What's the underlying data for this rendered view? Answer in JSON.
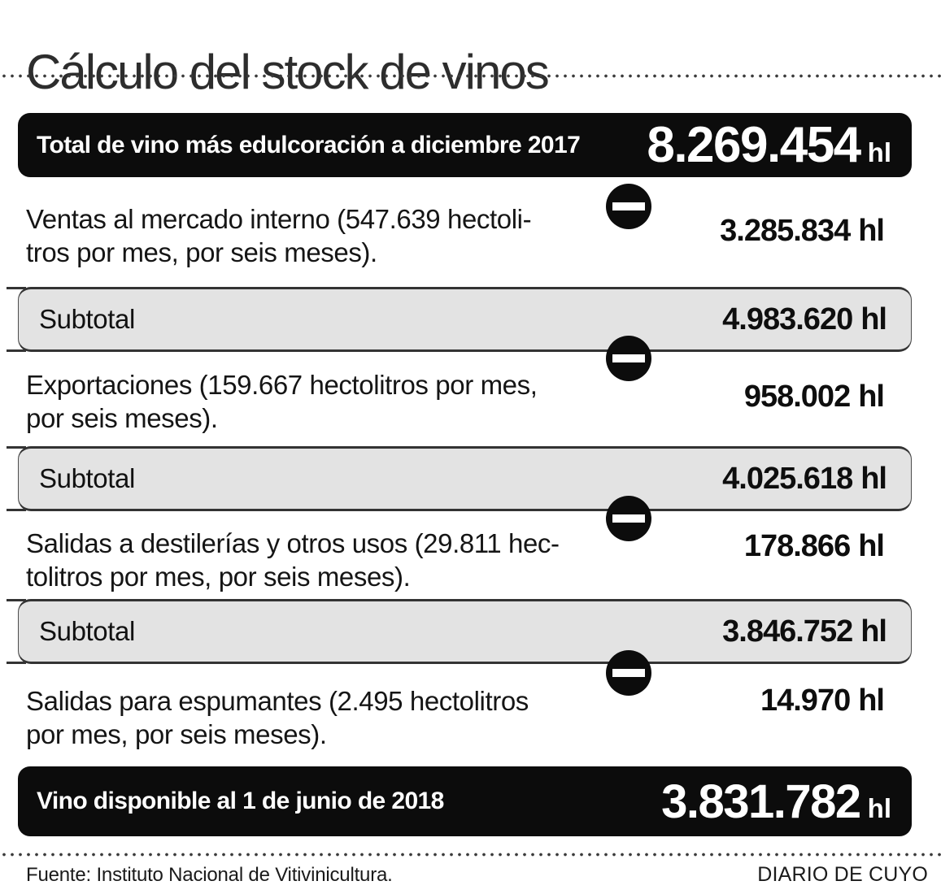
{
  "title": "Cálculo del stock de vinos",
  "header_bar": {
    "label": "Total de vino más edulcoración a diciembre 2017",
    "value": "8.269.454",
    "unit": "hl"
  },
  "deductions": [
    {
      "line1": "Ventas al mercado interno (547.639 hectoli-",
      "line2": "tros por mes, por seis meses).",
      "value": "3.285.834",
      "unit": "hl"
    },
    {
      "line1": "Exportaciones (159.667 hectolitros por mes,",
      "line2": "por seis meses).",
      "value": "958.002",
      "unit": "hl"
    },
    {
      "line1": "Salidas a destilerías y otros usos (29.811 hec-",
      "line2": "tolitros por mes, por seis meses).",
      "value": "178.866",
      "unit": "hl"
    },
    {
      "line1": "Salidas para espumantes (2.495 hectolitros",
      "line2": "por mes, por seis meses).",
      "value": "14.970",
      "unit": "hl"
    }
  ],
  "subtotals": [
    {
      "label": "Subtotal",
      "value": "4.983.620",
      "unit": "hl"
    },
    {
      "label": "Subtotal",
      "value": "4.025.618",
      "unit": "hl"
    },
    {
      "label": "Subtotal",
      "value": "3.846.752",
      "unit": "hl"
    }
  ],
  "result_bar": {
    "label": "Vino disponible al 1 de junio de 2018",
    "value": "3.831.782",
    "unit": "hl"
  },
  "footer": {
    "source": "Fuente: Instituto Nacional de Vitivinicultura.",
    "brand": "DIARIO DE CUYO"
  },
  "icons": {
    "minus": "minus-icon"
  },
  "colors": {
    "bar_black": "#0c0c0c",
    "subtotal_fill": "#e3e3e3",
    "subtotal_border": "#333333",
    "text": "#151515",
    "title": "#2d2d2d",
    "dots": "#3c3c3c"
  },
  "chart_data": {
    "type": "table",
    "title": "Cálculo del stock de vinos",
    "unit": "hl",
    "rows": [
      {
        "label": "Total de vino más edulcoración a diciembre 2017",
        "operation": "start",
        "value_hl": 8269454
      },
      {
        "label": "Ventas al mercado interno (547.639 hectolitros por mes, por seis meses).",
        "operation": "minus",
        "value_hl": 3285834
      },
      {
        "label": "Subtotal",
        "operation": "subtotal",
        "value_hl": 4983620
      },
      {
        "label": "Exportaciones (159.667 hectolitros por mes, por seis meses).",
        "operation": "minus",
        "value_hl": 958002
      },
      {
        "label": "Subtotal",
        "operation": "subtotal",
        "value_hl": 4025618
      },
      {
        "label": "Salidas a destilerías y otros usos (29.811 hectolitros por mes, por seis meses).",
        "operation": "minus",
        "value_hl": 178866
      },
      {
        "label": "Subtotal",
        "operation": "subtotal",
        "value_hl": 3846752
      },
      {
        "label": "Salidas para espumantes (2.495 hectolitros por mes, por seis meses).",
        "operation": "minus",
        "value_hl": 14970
      },
      {
        "label": "Vino disponible al 1 de junio de 2018",
        "operation": "result",
        "value_hl": 3831782
      }
    ],
    "source": "Fuente: Instituto Nacional de Vitivinicultura.",
    "publisher": "DIARIO DE CUYO"
  }
}
